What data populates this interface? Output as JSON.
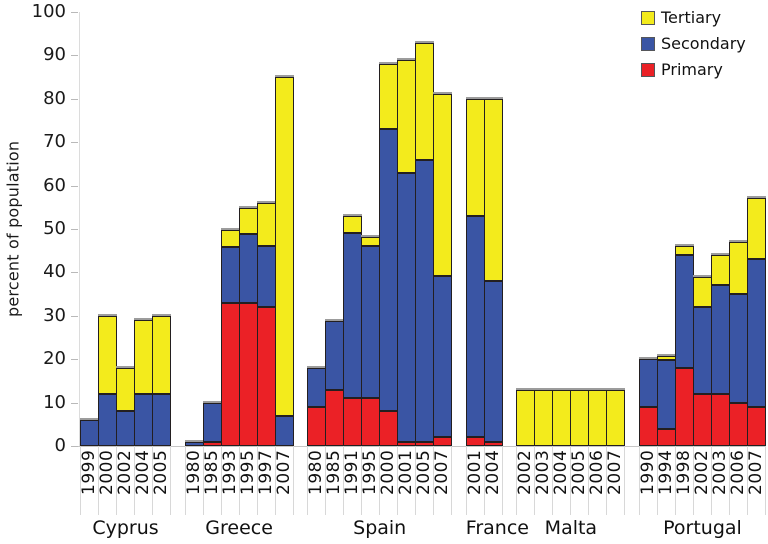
{
  "chart_data": {
    "type": "bar",
    "stacked": true,
    "title": "",
    "ylabel": "percent of population",
    "xlabel": "",
    "ylim": [
      0,
      100
    ],
    "yticks": [
      0,
      10,
      20,
      30,
      40,
      50,
      60,
      70,
      80,
      90,
      100
    ],
    "grid": "off",
    "legend_position": "top-right",
    "bar_border_color": "#231F20",
    "legend": [
      {
        "name": "Tertiary",
        "key": "tertiary",
        "color": "#F3EB1C"
      },
      {
        "name": "Secondary",
        "key": "secondary",
        "color": "#3A55A4"
      },
      {
        "name": "Primary",
        "key": "primary",
        "color": "#EB2126"
      }
    ],
    "stack_order_bottom_to_top": [
      "primary",
      "secondary",
      "tertiary"
    ],
    "groups": [
      {
        "country": "Cyprus",
        "years": [
          "1999",
          "2000",
          "2002",
          "2004",
          "2005"
        ],
        "primary": [
          0,
          0,
          0,
          0,
          0
        ],
        "secondary": [
          6,
          12,
          8,
          12,
          12
        ],
        "tertiary": [
          0,
          18,
          10,
          17,
          18
        ]
      },
      {
        "country": "Greece",
        "years": [
          "1980",
          "1985",
          "1993",
          "1995",
          "1997",
          "2007"
        ],
        "primary": [
          0,
          1,
          33,
          33,
          32,
          0
        ],
        "secondary": [
          1,
          9,
          13,
          16,
          14,
          7
        ],
        "tertiary": [
          0,
          0,
          4,
          6,
          10,
          78
        ]
      },
      {
        "country": "Spain",
        "years": [
          "1980",
          "1985",
          "1991",
          "1995",
          "2000",
          "2001",
          "2005",
          "2007"
        ],
        "primary": [
          9,
          13,
          11,
          11,
          8,
          1,
          1,
          2
        ],
        "secondary": [
          9,
          16,
          38,
          35,
          65,
          62,
          65,
          37
        ],
        "tertiary": [
          0,
          0,
          4,
          2,
          15,
          26,
          27,
          42
        ]
      },
      {
        "country": "France",
        "years": [
          "2001",
          "2004"
        ],
        "primary": [
          2,
          1
        ],
        "secondary": [
          51,
          37
        ],
        "tertiary": [
          27,
          42
        ]
      },
      {
        "country": "Malta",
        "years": [
          "2002",
          "2003",
          "2004",
          "2005",
          "2006",
          "2007"
        ],
        "primary": [
          0,
          0,
          0,
          0,
          0,
          0
        ],
        "secondary": [
          0,
          0,
          0,
          0,
          0,
          0
        ],
        "tertiary": [
          13,
          13,
          13,
          13,
          13,
          13
        ]
      },
      {
        "country": "Portugal",
        "years": [
          "1990",
          "1994",
          "1998",
          "2002",
          "2003",
          "2006",
          "2007"
        ],
        "primary": [
          9,
          4,
          18,
          12,
          12,
          10,
          9
        ],
        "secondary": [
          11,
          16,
          26,
          20,
          25,
          25,
          34
        ],
        "tertiary": [
          0,
          1,
          2,
          7,
          7,
          12,
          14
        ]
      }
    ]
  }
}
